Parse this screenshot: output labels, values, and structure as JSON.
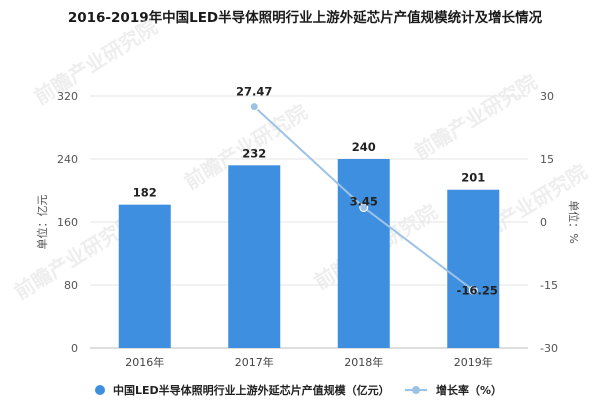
{
  "chart_data": {
    "type": "bar",
    "title": "2016-2019年中国LED半导体照明行业上游外延芯片产值规模统计及增长情况",
    "categories": [
      "2016年",
      "2017年",
      "2018年",
      "2019年"
    ],
    "series": [
      {
        "name": "中国LED半导体照明行业上游外延芯片产值规模（亿元）",
        "type": "bar",
        "axis": "left",
        "values": [
          182,
          232,
          240,
          201
        ],
        "labels": [
          "182",
          "232",
          "240",
          "201"
        ],
        "color": "#3e8fe0"
      },
      {
        "name": "增长率（%）",
        "type": "line",
        "axis": "right",
        "x": [
          "2017年",
          "2018年",
          "2019年"
        ],
        "values": [
          27.47,
          3.45,
          -16.25
        ],
        "labels": [
          "27.47",
          "3.45",
          "-16.25"
        ],
        "color": "#9ec2e6"
      }
    ],
    "ylabel": "单位：亿元",
    "y2label": "单位：%",
    "ylim": [
      0,
      320
    ],
    "yticks": [
      "0",
      "80",
      "160",
      "240",
      "320"
    ],
    "y2lim": [
      -30,
      30
    ],
    "y2ticks": [
      "-30",
      "-15",
      "0",
      "15",
      "30"
    ],
    "grid": true,
    "legend": "bottom"
  },
  "watermark": "前瞻产业研究院"
}
